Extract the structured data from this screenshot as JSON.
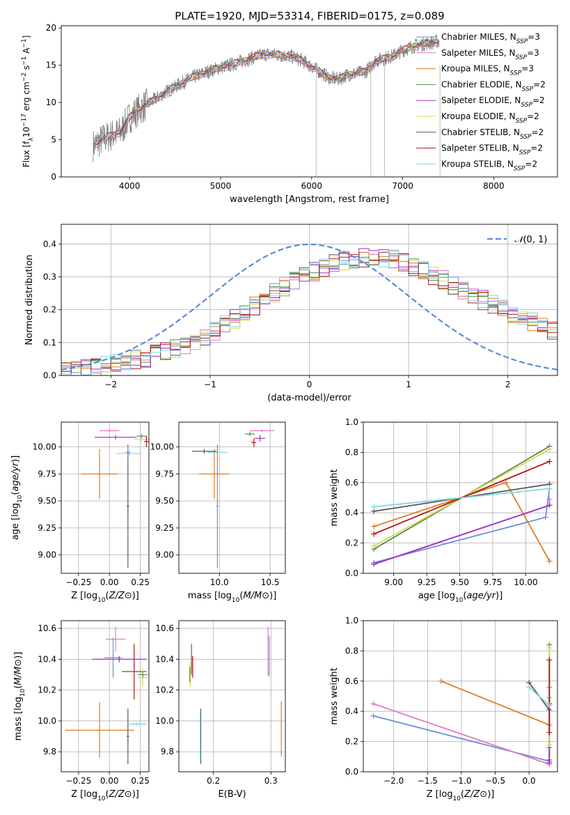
{
  "figure_title": "PLATE=1920, MJD=53314, FIBERID=0175, z=0.089",
  "colors": {
    "Chabrier MILES": "#6a8fd8",
    "Salpeter MILES": "#e377c2",
    "Kroupa MILES": "#e07b20",
    "Chabrier ELODIE": "#4f8f4f",
    "Salpeter ELODIE": "#9b30c8",
    "Kroupa ELODIE": "#d9d94a",
    "Chabrier STELIB": "#555555",
    "Salpeter STELIB": "#b01515",
    "Kroupa STELIB": "#7fd6dd",
    "data": "#808080",
    "normal": "#5b8bd9"
  },
  "chart_data": [
    {
      "id": "spectrum",
      "type": "line",
      "title": "PLATE=1920, MJD=53314, FIBERID=0175, z=0.089",
      "xlabel": "wavelength [Angstrom, rest frame]",
      "ylabel": "Flux [f_λ 10^-17 erg cm^-2 s^-1 A^-1]",
      "xlim": [
        3250,
        8700
      ],
      "ylim": [
        0,
        20.3
      ],
      "xticks": [
        "4000",
        "5000",
        "6000",
        "7000",
        "8000"
      ],
      "yticks": [
        "0",
        "5",
        "10",
        "15",
        "20"
      ],
      "legend_position": "top-right",
      "legend": [
        {
          "name": "Chabrier MILES",
          "nssp": "3"
        },
        {
          "name": "Salpeter MILES",
          "nssp": "3"
        },
        {
          "name": "Kroupa MILES",
          "nssp": "3"
        },
        {
          "name": "Chabrier ELODIE",
          "nssp": "2"
        },
        {
          "name": "Salpeter ELODIE",
          "nssp": "2"
        },
        {
          "name": "Kroupa ELODIE",
          "nssp": "2"
        },
        {
          "name": "Chabrier STELIB",
          "nssp": "2"
        },
        {
          "name": "Salpeter STELIB",
          "nssp": "2"
        },
        {
          "name": "Kroupa STELIB",
          "nssp": "2"
        }
      ],
      "continuum": {
        "x": [
          3600,
          3700,
          3800,
          3900,
          4000,
          4100,
          4200,
          4300,
          4400,
          4500,
          4600,
          4700,
          4800,
          4900,
          5000,
          5100,
          5200,
          5300,
          5400,
          5500,
          5600,
          5700,
          5800,
          5900,
          6000,
          6100,
          6200,
          6300,
          6400,
          6500,
          6600,
          6700,
          6800,
          6900,
          7000,
          7100,
          7200,
          7300,
          7400
        ],
        "y": [
          4.2,
          5.0,
          5.6,
          6.0,
          8.0,
          9.0,
          9.8,
          10.6,
          11.4,
          12.1,
          12.8,
          13.4,
          13.9,
          14.3,
          14.7,
          15.0,
          15.4,
          15.8,
          16.2,
          16.5,
          16.4,
          16.3,
          16.1,
          15.6,
          14.8,
          14.0,
          13.3,
          13.1,
          13.8,
          13.9,
          14.2,
          15.6,
          15.9,
          16.3,
          17.0,
          17.5,
          17.8,
          18.0,
          18.2
        ]
      }
    },
    {
      "id": "residuals",
      "type": "step",
      "xlabel": "(data-model)/error",
      "ylabel": "Normed distribution",
      "xlim": [
        -2.5,
        2.5
      ],
      "ylim": [
        0,
        0.46
      ],
      "xticks": [
        "−2",
        "−1",
        "0",
        "1",
        "2"
      ],
      "yticks": [
        "0.0",
        "0.1",
        "0.2",
        "0.3",
        "0.4"
      ],
      "grid": true,
      "legend_position": "top-right",
      "legend": [
        "N(0,1)"
      ],
      "bins_x": [
        -2.3,
        -2.1,
        -1.9,
        -1.7,
        -1.5,
        -1.3,
        -1.1,
        -0.9,
        -0.7,
        -0.5,
        -0.3,
        -0.1,
        0.1,
        0.3,
        0.5,
        0.7,
        0.9,
        1.1,
        1.3,
        1.5,
        1.7,
        1.9,
        2.1,
        2.3,
        2.5
      ],
      "bins_y": [
        0.02,
        0.03,
        0.04,
        0.055,
        0.07,
        0.09,
        0.12,
        0.155,
        0.19,
        0.235,
        0.27,
        0.3,
        0.33,
        0.35,
        0.36,
        0.36,
        0.345,
        0.32,
        0.29,
        0.26,
        0.23,
        0.2,
        0.175,
        0.15,
        0.13
      ]
    },
    {
      "id": "age_vs_Z",
      "type": "errorbar",
      "xlabel": "Z [log10(Z/Z⊙)]",
      "ylabel": "age  [log10(age/yr)]",
      "xlim": [
        -0.39,
        0.32
      ],
      "ylim": [
        8.83,
        10.23
      ],
      "xticks": [
        "−0.25",
        "0.00",
        "0.25"
      ],
      "yticks": [
        "9.00",
        "9.25",
        "9.50",
        "9.75",
        "10.00"
      ],
      "points": [
        {
          "model": "Kroupa MILES",
          "x": -0.08,
          "y": 9.75,
          "xerr": 0.15,
          "yerr": 0.23
        },
        {
          "model": "Salpeter MILES",
          "x": 0.0,
          "y": 10.15,
          "xerr": 0.08,
          "yerr": 0.01
        },
        {
          "model": "Salpeter ELODIE",
          "x": 0.05,
          "y": 10.09,
          "xerr": 0.17,
          "yerr": 0.02
        },
        {
          "model": "Kroupa ELODIE",
          "x": 0.26,
          "y": 10.07,
          "xerr": 0.06,
          "yerr": 0.02
        },
        {
          "model": "Chabrier ELODIE",
          "x": 0.26,
          "y": 10.1,
          "xerr": 0.04,
          "yerr": 0.02
        },
        {
          "model": "Salpeter STELIB",
          "x": 0.3,
          "y": 10.05,
          "xerr": 0.02,
          "yerr": 0.05
        },
        {
          "model": "Chabrier STELIB",
          "x": 0.15,
          "y": 9.45,
          "xerr": 0.01,
          "yerr": 0.57
        },
        {
          "model": "Kroupa STELIB",
          "x": 0.16,
          "y": 9.94,
          "xerr": 0.1,
          "yerr": 0.02
        },
        {
          "model": "Chabrier MILES",
          "x": 0.15,
          "y": 9.95,
          "xerr": 0.02,
          "yerr": 0.05
        }
      ]
    },
    {
      "id": "age_vs_mass",
      "type": "errorbar",
      "xlabel": "mass [log10(M/M⊙)]",
      "ylabel": "",
      "xlim": [
        9.6,
        10.65
      ],
      "ylim": [
        8.83,
        10.23
      ],
      "xticks": [
        "10.0",
        "10.5"
      ],
      "yticks": [
        "9.00",
        "9.25",
        "9.50",
        "9.75",
        "10.00"
      ],
      "points": [
        {
          "model": "Kroupa MILES",
          "x": 9.95,
          "y": 9.75,
          "xerr": 0.15,
          "yerr": 0.23
        },
        {
          "model": "Chabrier STELIB",
          "x": 9.85,
          "y": 9.96,
          "xerr": 0.12,
          "yerr": 0.02
        },
        {
          "model": "Kroupa STELIB",
          "x": 9.98,
          "y": 9.95,
          "xerr": 0.1,
          "yerr": 0.02
        },
        {
          "model": "Chabrier MILES",
          "x": 9.98,
          "y": 9.45,
          "xerr": 0.01,
          "yerr": 0.57
        },
        {
          "model": "Salpeter MILES",
          "x": 10.42,
          "y": 10.15,
          "xerr": 0.12,
          "yerr": 0.01
        },
        {
          "model": "Chabrier ELODIE",
          "x": 10.3,
          "y": 10.12,
          "xerr": 0.05,
          "yerr": 0.02
        },
        {
          "model": "Salpeter ELODIE",
          "x": 10.4,
          "y": 10.08,
          "xerr": 0.05,
          "yerr": 0.03
        },
        {
          "model": "Kroupa ELODIE",
          "x": 10.32,
          "y": 10.05,
          "xerr": 0.03,
          "yerr": 0.02
        },
        {
          "model": "Salpeter STELIB",
          "x": 10.34,
          "y": 10.04,
          "xerr": 0.02,
          "yerr": 0.04
        }
      ]
    },
    {
      "id": "weight_vs_age",
      "type": "line",
      "xlabel": "age  [log10(age/yr)]",
      "ylabel": "mass weight",
      "xlim": [
        8.77,
        10.24
      ],
      "ylim": [
        0,
        1
      ],
      "xticks": [
        "9.00",
        "9.25",
        "9.50",
        "9.75",
        "10.00"
      ],
      "yticks": [
        "0.0",
        "0.2",
        "0.4",
        "0.6",
        "0.8",
        "1.0"
      ],
      "grid": true,
      "series": [
        {
          "model": "Chabrier MILES",
          "x": [
            8.85,
            10.15,
            10.18
          ],
          "y": [
            0.07,
            0.37,
            0.56
          ]
        },
        {
          "model": "Salpeter MILES",
          "x": [
            8.85,
            10.18,
            10.18
          ],
          "y": [
            0.06,
            0.45,
            0.49
          ]
        },
        {
          "model": "Kroupa MILES",
          "x": [
            8.85,
            9.85,
            10.18
          ],
          "y": [
            0.31,
            0.6,
            0.08
          ]
        },
        {
          "model": "Chabrier ELODIE",
          "x": [
            8.85,
            10.18
          ],
          "y": [
            0.16,
            0.84
          ]
        },
        {
          "model": "Salpeter ELODIE",
          "x": [
            8.85,
            10.18
          ],
          "y": [
            0.06,
            0.45
          ]
        },
        {
          "model": "Kroupa ELODIE",
          "x": [
            8.85,
            10.18
          ],
          "y": [
            0.18,
            0.82
          ]
        },
        {
          "model": "Chabrier STELIB",
          "x": [
            8.85,
            10.18
          ],
          "y": [
            0.41,
            0.59
          ]
        },
        {
          "model": "Salpeter STELIB",
          "x": [
            8.85,
            10.18
          ],
          "y": [
            0.26,
            0.74
          ]
        },
        {
          "model": "Kroupa STELIB",
          "x": [
            8.85,
            10.18
          ],
          "y": [
            0.44,
            0.56
          ]
        }
      ]
    },
    {
      "id": "mass_vs_Z",
      "type": "errorbar",
      "xlabel": "Z [log10(Z/Z⊙)]",
      "ylabel": "mass [log10(M/M⊙)]",
      "xlim": [
        -0.39,
        0.32
      ],
      "ylim": [
        9.67,
        10.65
      ],
      "xticks": [
        "−0.25",
        "0.00",
        "0.25"
      ],
      "yticks": [
        "9.8",
        "10.0",
        "10.2",
        "10.4",
        "10.6"
      ],
      "points": [
        {
          "model": "Kroupa MILES",
          "x": -0.08,
          "y": 9.94,
          "xerr": 0.28,
          "yerr": 0.18
        },
        {
          "model": "Salpeter MILES",
          "x": 0.05,
          "y": 10.53,
          "xerr": 0.08,
          "yerr": 0.08
        },
        {
          "model": "Chabrier MILES",
          "x": 0.03,
          "y": 10.41,
          "xerr": 0.07,
          "yerr": 0.13
        },
        {
          "model": "Salpeter ELODIE",
          "x": 0.08,
          "y": 10.4,
          "xerr": 0.22,
          "yerr": 0.02
        },
        {
          "model": "Salpeter STELIB",
          "x": 0.2,
          "y": 10.32,
          "xerr": 0.1,
          "yerr": 0.18
        },
        {
          "model": "Kroupa ELODIE",
          "x": 0.27,
          "y": 10.28,
          "xerr": 0.04,
          "yerr": 0.06
        },
        {
          "model": "Chabrier ELODIE",
          "x": 0.27,
          "y": 10.3,
          "xerr": 0.04,
          "yerr": 0.02
        },
        {
          "model": "Chabrier STELIB",
          "x": 0.15,
          "y": 9.9,
          "xerr": 0.01,
          "yerr": 0.18
        },
        {
          "model": "Kroupa STELIB",
          "x": 0.22,
          "y": 9.98,
          "xerr": 0.08,
          "yerr": 0.01
        }
      ]
    },
    {
      "id": "mass_vs_EBV",
      "type": "errorbar",
      "xlabel": "E(B-V)",
      "ylabel": "",
      "xlim": [
        0.14,
        0.325
      ],
      "ylim": [
        9.67,
        10.65
      ],
      "xticks": [
        "0.2",
        "0.3"
      ],
      "yticks": [
        "9.8",
        "10.0",
        "10.2",
        "10.4",
        "10.6"
      ],
      "points": [
        {
          "model": "Salpeter ELODIE",
          "x": 0.162,
          "y": 10.4,
          "xerr": 0,
          "yerr": 0.1
        },
        {
          "model": "Salpeter STELIB",
          "x": 0.164,
          "y": 10.35,
          "xerr": 0,
          "yerr": 0.07
        },
        {
          "model": "Kroupa ELODIE",
          "x": 0.16,
          "y": 10.3,
          "xerr": 0,
          "yerr": 0.08
        },
        {
          "model": "Chabrier ELODIE",
          "x": 0.159,
          "y": 10.3,
          "xerr": 0,
          "yerr": 0.05
        },
        {
          "model": "Chabrier STELIB",
          "x": 0.178,
          "y": 9.9,
          "xerr": 0,
          "yerr": 0.18
        },
        {
          "model": "Kroupa STELIB",
          "x": 0.177,
          "y": 9.9,
          "xerr": 0,
          "yerr": 0.15
        },
        {
          "model": "Salpeter MILES",
          "x": 0.295,
          "y": 10.45,
          "xerr": 0,
          "yerr": 0.16
        },
        {
          "model": "Chabrier MILES",
          "x": 0.297,
          "y": 10.42,
          "xerr": 0,
          "yerr": 0.13
        },
        {
          "model": "Kroupa MILES",
          "x": 0.318,
          "y": 9.95,
          "xerr": 0,
          "yerr": 0.18
        }
      ]
    },
    {
      "id": "weight_vs_Z",
      "type": "line",
      "xlabel": "Z [log10(Z/Z⊙)]",
      "ylabel": "mass weight",
      "xlim": [
        -2.45,
        0.42
      ],
      "ylim": [
        0,
        1
      ],
      "xticks": [
        "−2.0",
        "−1.5",
        "−1.0",
        "−0.5",
        "0.0"
      ],
      "yticks": [
        "0.0",
        "0.2",
        "0.4",
        "0.6",
        "0.8",
        "1.0"
      ],
      "grid": true,
      "series": [
        {
          "model": "Chabrier MILES",
          "x": [
            -2.3,
            0.3,
            0.3
          ],
          "y": [
            0.37,
            0.07,
            0.56
          ]
        },
        {
          "model": "Salpeter MILES",
          "x": [
            -2.3,
            0.3,
            0.3
          ],
          "y": [
            0.45,
            0.05,
            0.49
          ]
        },
        {
          "model": "Kroupa MILES",
          "x": [
            -1.3,
            0.3,
            0.3
          ],
          "y": [
            0.6,
            0.31,
            0.08
          ]
        },
        {
          "model": "Chabrier ELODIE",
          "x": [
            0.3,
            0.3
          ],
          "y": [
            0.16,
            0.84
          ]
        },
        {
          "model": "Salpeter ELODIE",
          "x": [
            0.3,
            0.3
          ],
          "y": [
            0.06,
            0.45
          ]
        },
        {
          "model": "Kroupa ELODIE",
          "x": [
            0.3,
            0.3
          ],
          "y": [
            0.18,
            0.82
          ]
        },
        {
          "model": "Chabrier STELIB",
          "x": [
            0.0,
            0.3
          ],
          "y": [
            0.59,
            0.41
          ]
        },
        {
          "model": "Salpeter STELIB",
          "x": [
            0.3,
            0.3
          ],
          "y": [
            0.26,
            0.74
          ]
        },
        {
          "model": "Kroupa STELIB",
          "x": [
            0.0,
            0.3
          ],
          "y": [
            0.56,
            0.44
          ]
        }
      ]
    }
  ]
}
